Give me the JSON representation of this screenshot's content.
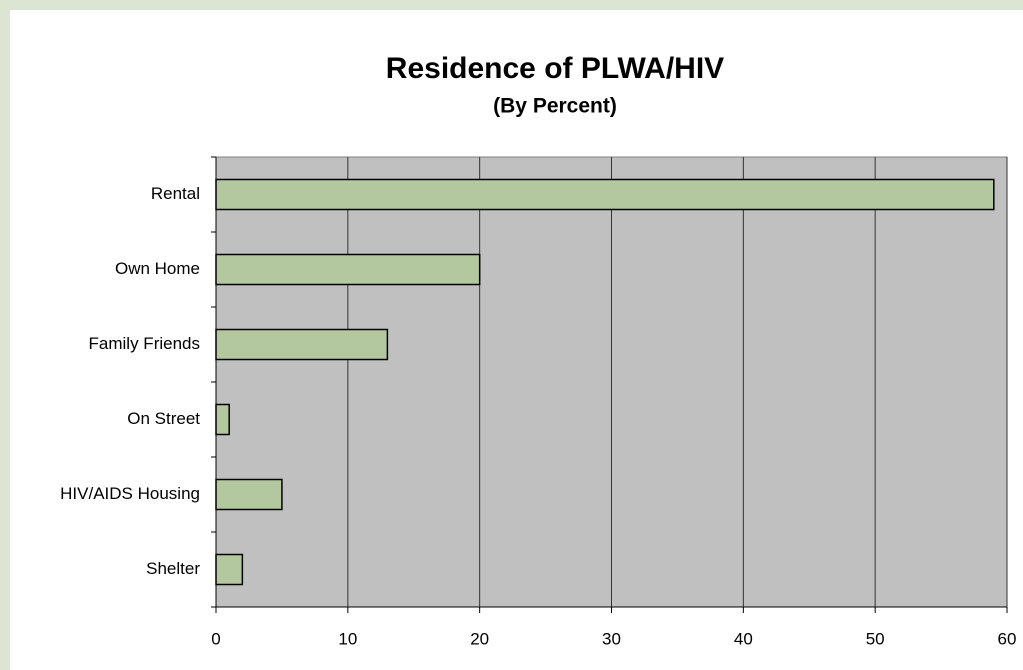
{
  "chart_data": {
    "type": "bar",
    "orientation": "horizontal",
    "title": "Residence of PLWA/HIV",
    "subtitle": "(By Percent)",
    "categories": [
      "Rental",
      "Own Home",
      "Family Friends",
      "On Street",
      "HIV/AIDS Housing",
      "Shelter"
    ],
    "values": [
      59,
      20,
      13,
      1,
      5,
      2
    ],
    "color": "#b3c89e",
    "xlim": [
      0,
      60
    ],
    "xticks": [
      0,
      10,
      20,
      30,
      40,
      50,
      60
    ],
    "grid": true
  }
}
